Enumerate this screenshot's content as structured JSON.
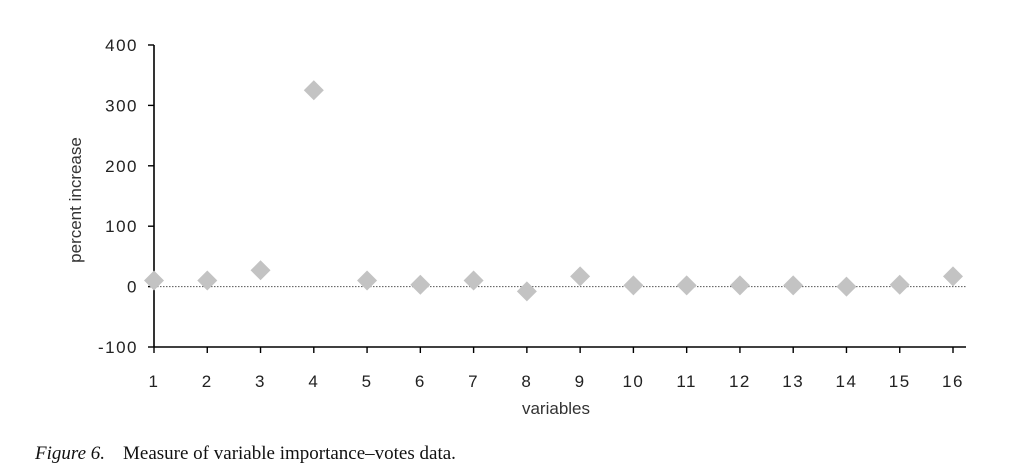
{
  "chart_data": {
    "type": "scatter",
    "x": [
      1,
      2,
      3,
      4,
      5,
      6,
      7,
      8,
      9,
      10,
      11,
      12,
      13,
      14,
      15,
      16
    ],
    "values": [
      10,
      10,
      27,
      325,
      10,
      3,
      10,
      -8,
      17,
      2,
      2,
      2,
      2,
      0,
      3,
      17
    ],
    "xlabel": "variables",
    "ylabel": "percent increase",
    "xlim": [
      1,
      16
    ],
    "ylim": [
      -100,
      400
    ],
    "yticks": [
      -100,
      0,
      100,
      200,
      300,
      400
    ],
    "xticks": [
      1,
      2,
      3,
      4,
      5,
      6,
      7,
      8,
      9,
      10,
      11,
      12,
      13,
      14,
      15,
      16
    ],
    "reference_line": 0,
    "marker": "diamond",
    "marker_color": "#c3c3c3",
    "axis_color": "#000000",
    "grid": false
  },
  "caption": {
    "label": "Figure 6.",
    "text": "Measure of variable importance–votes data."
  }
}
